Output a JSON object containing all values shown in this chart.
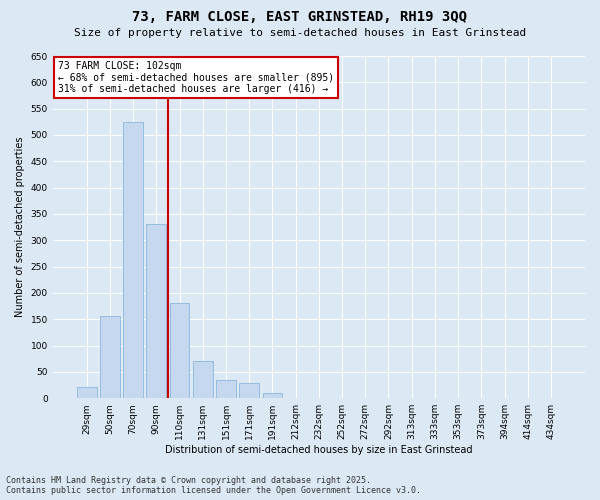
{
  "title": "73, FARM CLOSE, EAST GRINSTEAD, RH19 3QQ",
  "subtitle": "Size of property relative to semi-detached houses in East Grinstead",
  "xlabel": "Distribution of semi-detached houses by size in East Grinstead",
  "ylabel": "Number of semi-detached properties",
  "categories": [
    "29sqm",
    "50sqm",
    "70sqm",
    "90sqm",
    "110sqm",
    "131sqm",
    "151sqm",
    "171sqm",
    "191sqm",
    "212sqm",
    "232sqm",
    "252sqm",
    "272sqm",
    "292sqm",
    "313sqm",
    "333sqm",
    "353sqm",
    "373sqm",
    "394sqm",
    "414sqm",
    "434sqm"
  ],
  "values": [
    22,
    157,
    525,
    330,
    180,
    70,
    35,
    28,
    10,
    1,
    0,
    0,
    0,
    0,
    0,
    0,
    0,
    0,
    0,
    0,
    1
  ],
  "bar_color": "#c5d8f0",
  "bar_edge_color": "#7aaed6",
  "vline_x": 3.5,
  "vline_color": "#cc0000",
  "annotation_text": "73 FARM CLOSE: 102sqm\n← 68% of semi-detached houses are smaller (895)\n31% of semi-detached houses are larger (416) →",
  "annotation_box_color": "#ffffff",
  "annotation_box_edgecolor": "#cc0000",
  "ylim": [
    0,
    650
  ],
  "yticks": [
    0,
    50,
    100,
    150,
    200,
    250,
    300,
    350,
    400,
    450,
    500,
    550,
    600,
    650
  ],
  "background_color": "#dce9f5",
  "plot_background_color": "#dce9f5",
  "grid_color": "#ffffff",
  "footer_line1": "Contains HM Land Registry data © Crown copyright and database right 2025.",
  "footer_line2": "Contains public sector information licensed under the Open Government Licence v3.0.",
  "title_fontsize": 10,
  "subtitle_fontsize": 8,
  "annotation_fontsize": 7,
  "footer_fontsize": 6,
  "ylabel_fontsize": 7,
  "xlabel_fontsize": 7,
  "tick_fontsize": 6.5
}
